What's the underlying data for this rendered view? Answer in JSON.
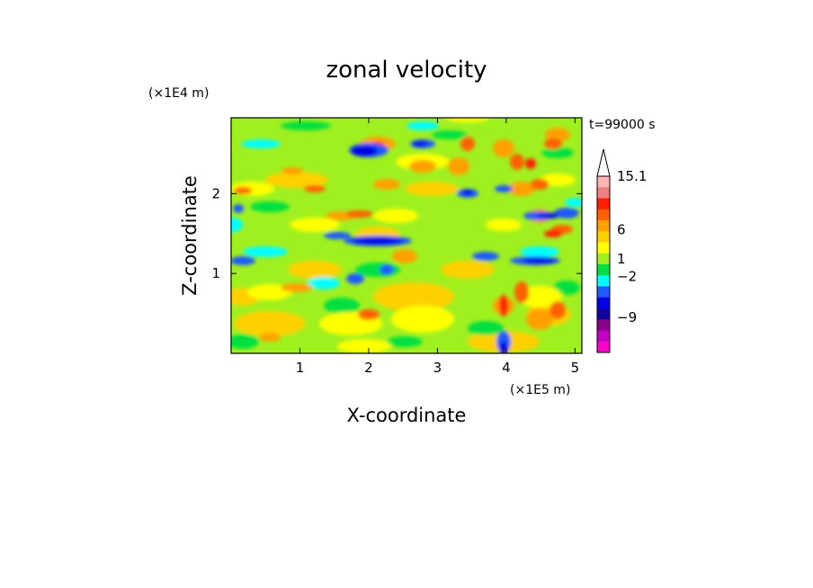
{
  "chart_data": {
    "type": "heatmap",
    "title": "zonal velocity",
    "xlabel": "X-coordinate",
    "ylabel": "Z-coordinate",
    "x_unit_label": "(×1E5 m)",
    "y_unit_label": "(×1E4 m)",
    "time_label": "t=99000 s",
    "xlim": [
      0,
      5.1
    ],
    "ylim": [
      0,
      2.95
    ],
    "x_ticks": [
      1,
      2,
      3,
      4,
      5
    ],
    "x_tick_labels": [
      "1",
      "2",
      "3",
      "4",
      "5"
    ],
    "y_ticks": [
      1,
      2
    ],
    "y_tick_labels": [
      "1",
      "2"
    ],
    "colorbar": {
      "colors": [
        "#ff00c8",
        "#c400c4",
        "#8a008a",
        "#1400a0",
        "#0000e6",
        "#1e5aff",
        "#00ffff",
        "#00e040",
        "#a0f020",
        "#ffff00",
        "#ffd000",
        "#ffa000",
        "#ff6000",
        "#ff2000",
        "#f08080",
        "#ffb4b4"
      ],
      "tick_labels": [
        "15.1",
        "6",
        "1",
        "−2",
        "−9"
      ],
      "tick_values": [
        15.1,
        6,
        1,
        -2,
        -9
      ],
      "range": [
        -15,
        15.1
      ],
      "extend": "max",
      "extend_color": "#ffffff"
    }
  }
}
